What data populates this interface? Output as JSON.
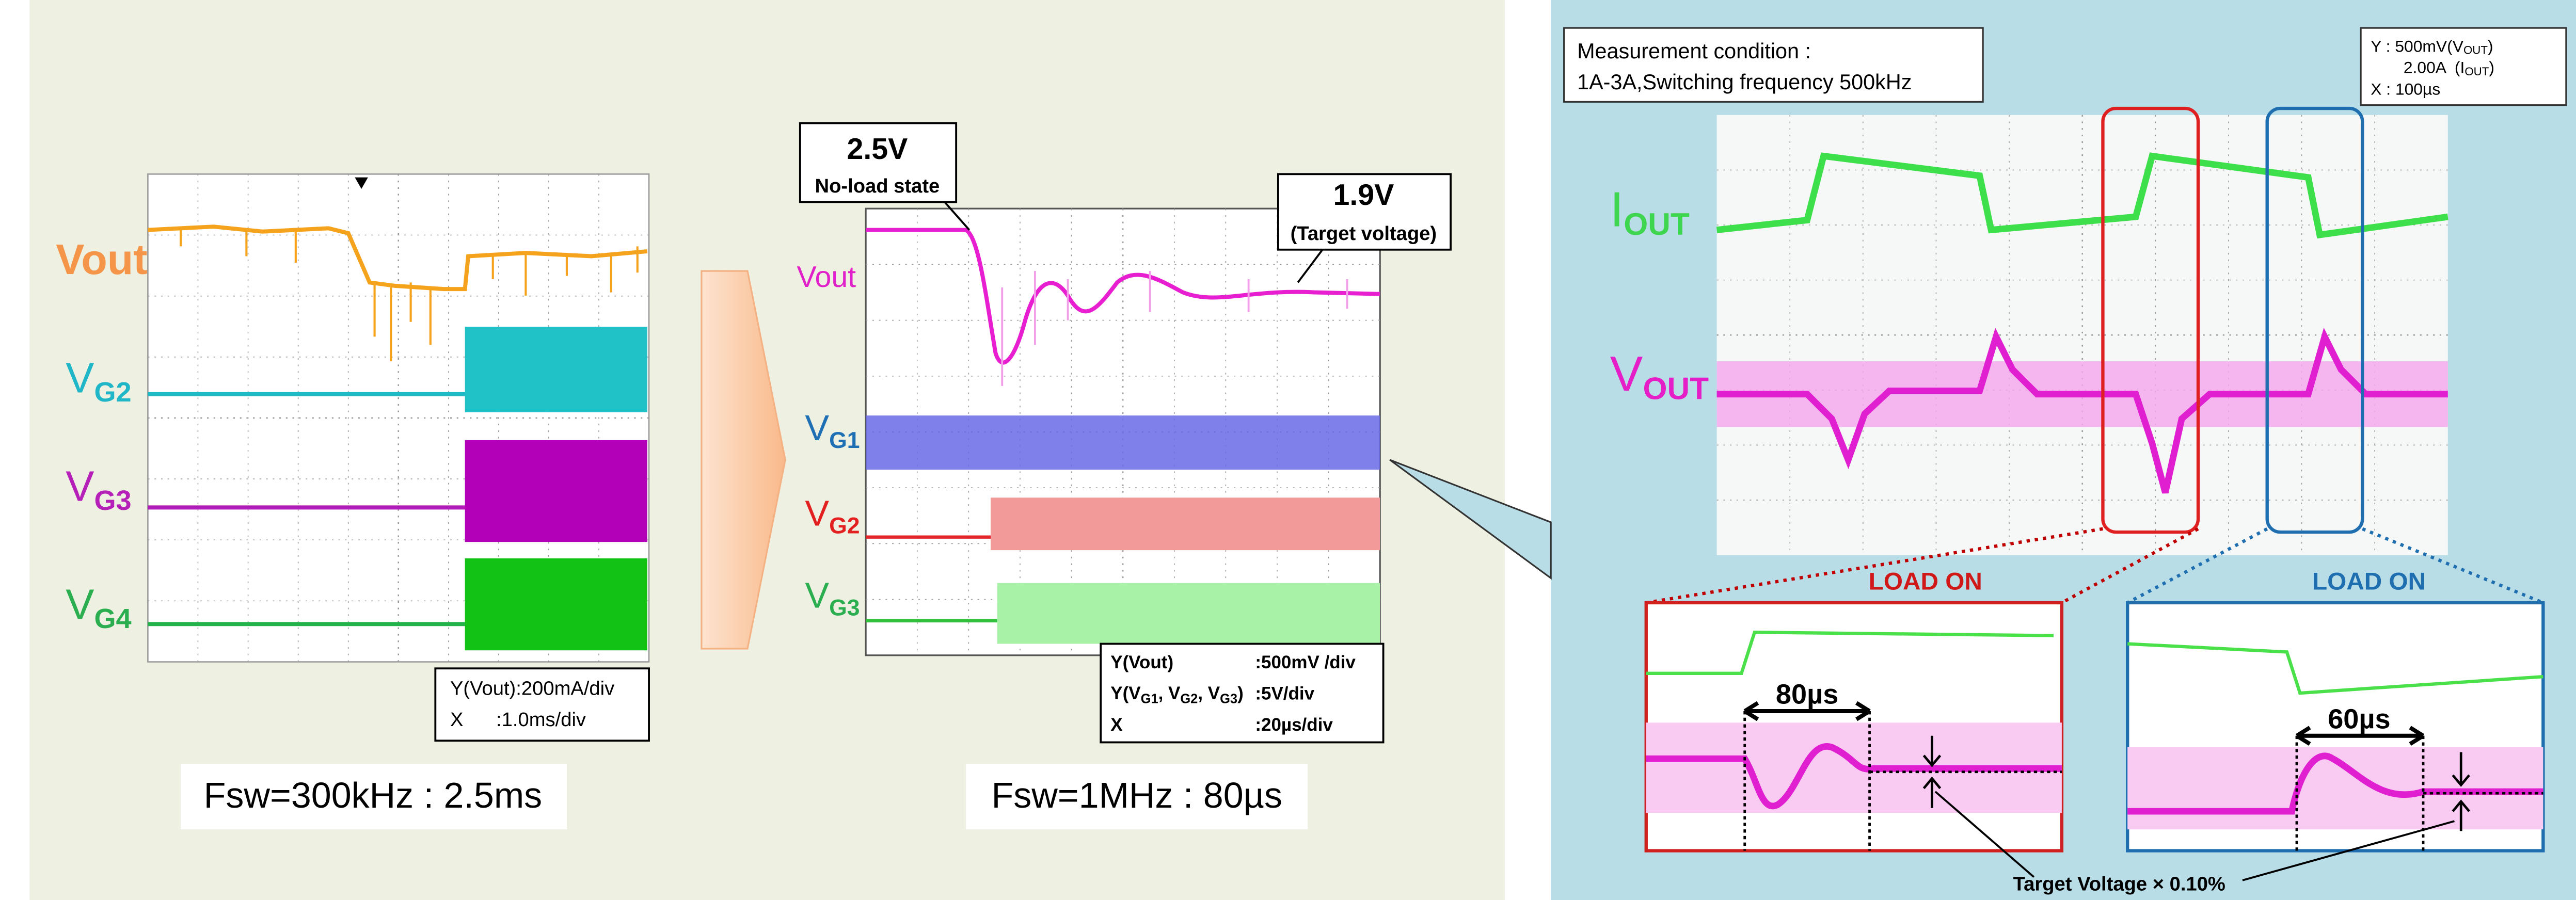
{
  "left_scope": {
    "vout_label": "Vout",
    "vg2": {
      "main": "V",
      "sub": "G2"
    },
    "vg3": {
      "main": "V",
      "sub": "G3"
    },
    "vg4": {
      "main": "V",
      "sub": "G4"
    },
    "scale": [
      "Y(Vout):200mA/div",
      "X      :1.0ms/div"
    ],
    "caption": "Fsw=300kHz : 2.5ms"
  },
  "middle_scope": {
    "callout_start": {
      "value": "2.5V",
      "note": "No-load state"
    },
    "callout_target": {
      "value": "1.9V",
      "note": "(Target voltage)"
    },
    "vout_label": "Vout",
    "vg1": {
      "main": "V",
      "sub": "G1"
    },
    "vg2": {
      "main": "V",
      "sub": "G2"
    },
    "vg3": {
      "main": "V",
      "sub": "G3"
    },
    "scale": {
      "row1": {
        "label": "Y(Vout)",
        "value": ":500mV /div"
      },
      "row2": {
        "label": [
          "Y(V",
          "G1",
          ", V",
          "G2",
          ", V",
          "G3",
          ")"
        ],
        "value": ":5V/div"
      },
      "row3": {
        "label": "X",
        "value": ":20µs/div"
      }
    },
    "caption": "Fsw=1MHz : 80µs"
  },
  "right_panel": {
    "condition": [
      "Measurement condition :",
      "1A-3A,Switching frequency 500kHz"
    ],
    "scale": {
      "row1": [
        "Y : 500mV(V",
        "OUT",
        ")"
      ],
      "row2": [
        "2.00A  (I",
        "OUT",
        ")"
      ],
      "row3": "X : 100µs"
    },
    "iout": {
      "main": "I",
      "sub": "OUT"
    },
    "vout": {
      "main": "V",
      "sub": "OUT"
    },
    "zoom_left": {
      "title": "LOAD ON",
      "duration": "80µs"
    },
    "zoom_right": {
      "title": "LOAD ON",
      "duration": "60µs"
    },
    "footnote": "Target Voltage × 0.10%"
  }
}
